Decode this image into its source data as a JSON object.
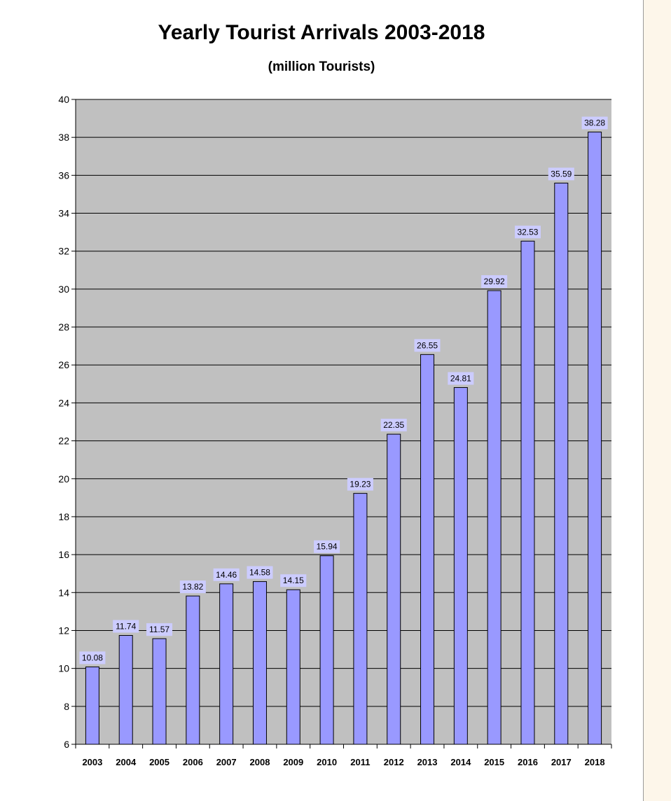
{
  "chart_data": {
    "type": "bar",
    "title": "Yearly Tourist Arrivals 2003-2018",
    "subtitle": "(million Tourists)",
    "xlabel": "",
    "ylabel": "",
    "ylim": [
      6,
      40
    ],
    "ytick_step": 2,
    "grid": true,
    "legend": "none",
    "categories": [
      "2003",
      "2004",
      "2005",
      "2006",
      "2007",
      "2008",
      "2009",
      "2010",
      "2011",
      "2012",
      "2013",
      "2014",
      "2015",
      "2016",
      "2017",
      "2018"
    ],
    "values": [
      10.08,
      11.74,
      11.57,
      13.82,
      14.46,
      14.58,
      14.15,
      15.94,
      19.23,
      22.35,
      26.55,
      24.81,
      29.92,
      32.53,
      35.59,
      38.28
    ],
    "value_labels": [
      "10.08",
      "11.74",
      "11.57",
      "13.82",
      "14.46",
      "14.58",
      "14.15",
      "15.94",
      "19.23",
      "22.35",
      "26.55",
      "24.81",
      "29.92",
      "32.53",
      "35.59",
      "38.28"
    ],
    "colors": {
      "bar": "#9999ff",
      "plot_area": "#c0c0c0",
      "label_box": "#ccccff",
      "side_panel": "#fdf6ea"
    }
  }
}
